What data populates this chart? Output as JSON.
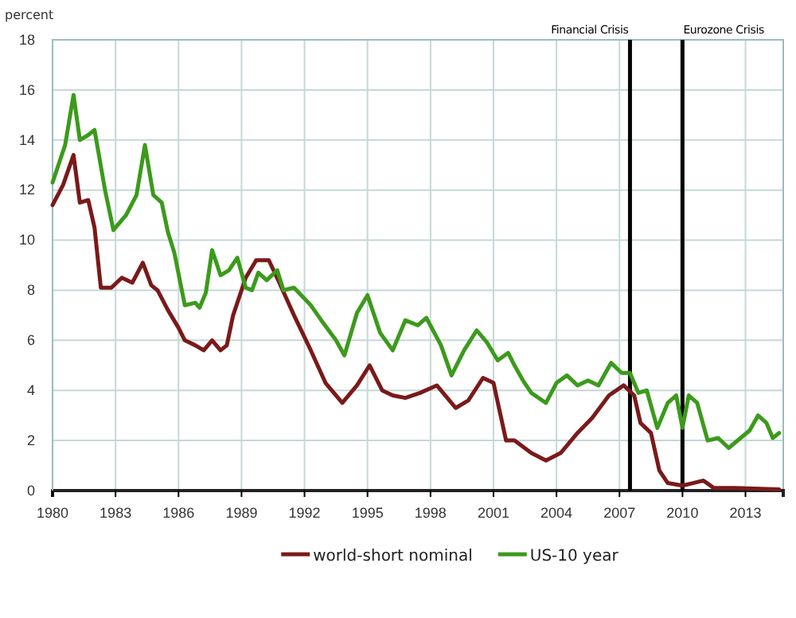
{
  "chart_data": {
    "type": "line",
    "ylabel": "percent",
    "xlim": [
      1980,
      2014.8
    ],
    "xticks": [
      1980,
      1983,
      1986,
      1989,
      1992,
      1995,
      1998,
      2001,
      2004,
      2007,
      2010,
      2013
    ],
    "ylim": [
      0,
      18
    ],
    "yticks": [
      0,
      2,
      4,
      6,
      8,
      10,
      12,
      14,
      16,
      18
    ],
    "grid": true,
    "legend": "bottom",
    "line_style": "solid",
    "ref_lines": [
      {
        "axis": "x",
        "value": 2007.5,
        "label": "Financial Crisis",
        "color": "#000000"
      },
      {
        "axis": "x",
        "value": 2010,
        "label": "Eurozone Crisis",
        "color": "#000000"
      }
    ],
    "series": [
      {
        "name": "world-short nominal",
        "color": "#7a1a1a",
        "x": [
          1980,
          1980.5,
          1981,
          1981.3,
          1981.7,
          1982,
          1982.3,
          1982.8,
          1983.3,
          1983.8,
          1984.3,
          1984.7,
          1985,
          1985.5,
          1986,
          1986.3,
          1986.8,
          1987.2,
          1987.6,
          1988,
          1988.3,
          1988.6,
          1989.2,
          1989.7,
          1990.3,
          1990.8,
          1991.5,
          1992.3,
          1993,
          1993.8,
          1994.5,
          1995.1,
          1995.7,
          1996.2,
          1996.8,
          1997.5,
          1998.3,
          1999.2,
          1999.8,
          2000.5,
          2001,
          2001.6,
          2002,
          2002.8,
          2003.5,
          2004.2,
          2005,
          2005.7,
          2006.5,
          2007.2,
          2007.7,
          2008,
          2008.5,
          2008.9,
          2009.3,
          2010,
          2010.5,
          2011,
          2011.5,
          2012.5,
          2014.6
        ],
        "values": [
          11.4,
          12.2,
          13.4,
          11.5,
          11.6,
          10.5,
          8.1,
          8.1,
          8.5,
          8.3,
          9.1,
          8.2,
          8.0,
          7.2,
          6.5,
          6.0,
          5.8,
          5.6,
          6.0,
          5.6,
          5.8,
          7.0,
          8.5,
          9.2,
          9.2,
          8.3,
          7.0,
          5.6,
          4.3,
          3.5,
          4.2,
          5.0,
          4.0,
          3.8,
          3.7,
          3.9,
          4.2,
          3.3,
          3.6,
          4.5,
          4.3,
          2.0,
          2.0,
          1.5,
          1.2,
          1.5,
          2.3,
          2.9,
          3.8,
          4.2,
          3.8,
          2.7,
          2.3,
          0.8,
          0.3,
          0.2,
          0.3,
          0.4,
          0.1,
          0.1,
          0.05
        ]
      },
      {
        "name": "US-10 year",
        "color": "#3c9a1c",
        "x": [
          1980,
          1980.6,
          1981,
          1981.3,
          1981.7,
          1982,
          1982.5,
          1982.9,
          1983.5,
          1984,
          1984.4,
          1984.8,
          1985.2,
          1985.5,
          1985.8,
          1986.3,
          1986.8,
          1987,
          1987.3,
          1987.6,
          1988,
          1988.4,
          1988.8,
          1989.2,
          1989.5,
          1989.8,
          1990.2,
          1990.7,
          1991,
          1991.5,
          1992.3,
          1992.8,
          1993.5,
          1993.9,
          1994.5,
          1995,
          1995.6,
          1996.2,
          1996.8,
          1997.4,
          1997.8,
          1998.5,
          1999,
          1999.6,
          2000.2,
          2000.7,
          2001.2,
          2001.7,
          2002,
          2002.4,
          2002.8,
          2003.5,
          2004,
          2004.5,
          2005,
          2005.5,
          2006,
          2006.6,
          2007.1,
          2007.5,
          2007.9,
          2008.3,
          2008.8,
          2009.3,
          2009.7,
          2010,
          2010.3,
          2010.7,
          2011.2,
          2011.7,
          2012.2,
          2013.2,
          2013.6,
          2014,
          2014.3,
          2014.6
        ],
        "values": [
          12.3,
          13.8,
          15.8,
          14.0,
          14.2,
          14.4,
          12.0,
          10.4,
          11.0,
          11.8,
          13.8,
          11.8,
          11.5,
          10.3,
          9.5,
          7.4,
          7.5,
          7.3,
          7.9,
          9.6,
          8.6,
          8.8,
          9.3,
          8.1,
          8.0,
          8.7,
          8.4,
          8.8,
          8.0,
          8.1,
          7.4,
          6.8,
          6.0,
          5.4,
          7.1,
          7.8,
          6.3,
          5.6,
          6.8,
          6.6,
          6.9,
          5.8,
          4.6,
          5.6,
          6.4,
          5.9,
          5.2,
          5.5,
          5.0,
          4.4,
          3.9,
          3.5,
          4.3,
          4.6,
          4.2,
          4.4,
          4.2,
          5.1,
          4.7,
          4.7,
          3.9,
          4.0,
          2.5,
          3.5,
          3.8,
          2.5,
          3.8,
          3.5,
          2.0,
          2.1,
          1.7,
          2.4,
          3.0,
          2.7,
          2.1,
          2.3
        ]
      }
    ]
  }
}
